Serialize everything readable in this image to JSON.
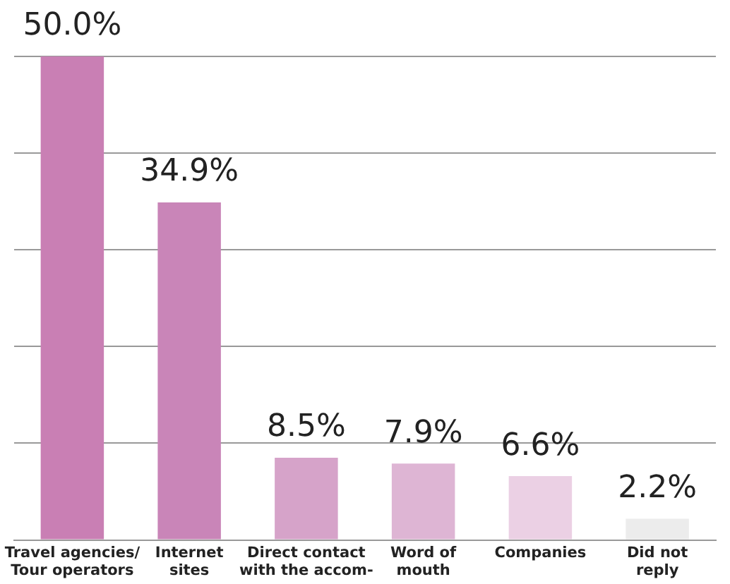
{
  "chart_data": {
    "type": "bar",
    "categories": [
      "Travel agencies/\nTour operators",
      "Internet\nsites",
      "Direct contact\nwith the accom-",
      "Word of\nmouth",
      "Companies",
      "Did not\nreply"
    ],
    "values": [
      50.0,
      34.9,
      8.5,
      7.9,
      6.6,
      2.2
    ],
    "value_labels": [
      "50.0%",
      "34.9%",
      "8.5%",
      "7.9%",
      "6.6%",
      "2.2%"
    ],
    "colors": [
      "#c97fb4",
      "#c985b8",
      "#d6a3c9",
      "#deb5d4",
      "#ebd0e4",
      "#ececec"
    ],
    "ylim": [
      0,
      50
    ],
    "yticks": [
      {
        "value": 0,
        "label": null
      },
      {
        "value": 10,
        "label": null
      },
      {
        "value": 20,
        "label": null
      },
      {
        "value": 30,
        "label": null
      },
      {
        "value": 40,
        "label": null
      },
      {
        "value": 50,
        "label": null
      }
    ],
    "grid": "y",
    "tick_labels": "x",
    "legend": false
  }
}
